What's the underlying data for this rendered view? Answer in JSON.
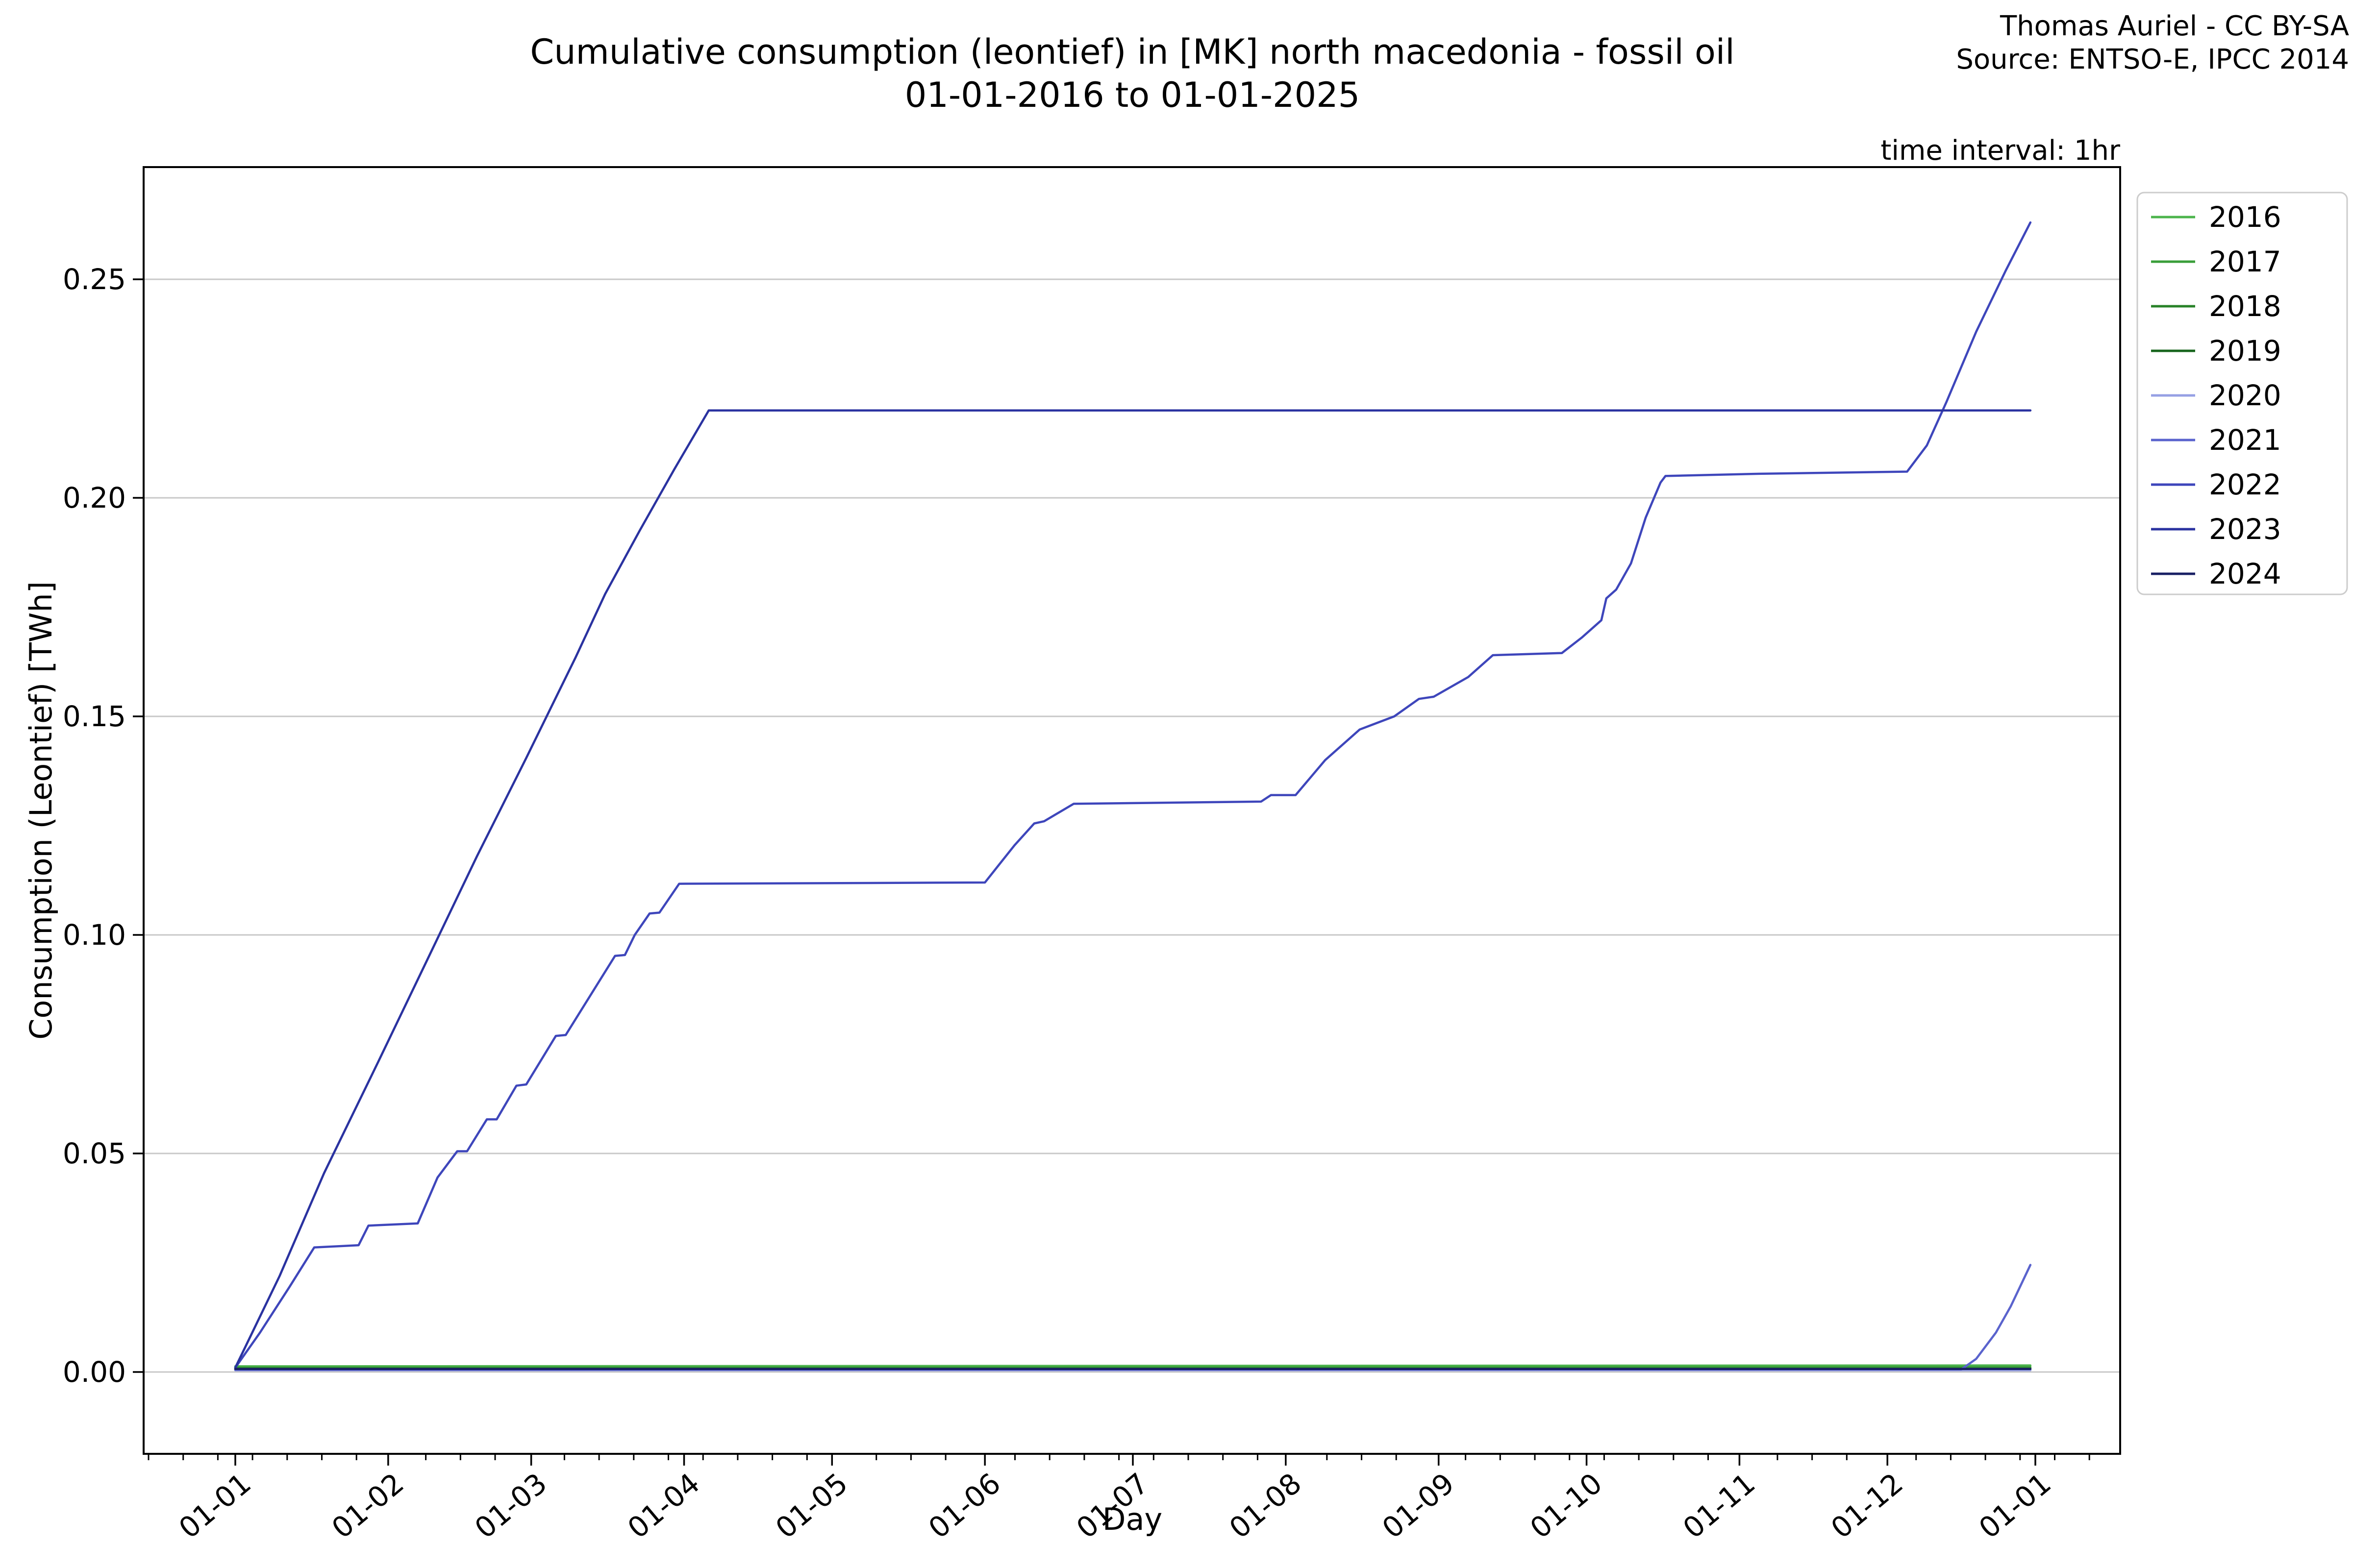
{
  "title": {
    "line1": "Cumulative consumption (leontief) in [MK] north macedonia - fossil oil",
    "line2": "01-01-2016 to 01-01-2025"
  },
  "credit": {
    "line1": "Thomas Auriel - CC BY-SA",
    "line2": "Source: ENTSO-E, IPCC 2014"
  },
  "time_interval_label": "time interval: 1hr",
  "axes": {
    "xlabel": "Day",
    "ylabel": "Consumption (Leontief) [TWh]"
  },
  "colors": {
    "grid": "#c8c8c8",
    "spine": "#000000",
    "background": "#ffffff",
    "legend_border": "#cccccc"
  },
  "chart_data": {
    "type": "line",
    "title": "Cumulative consumption (leontief) in [MK] north macedonia - fossil oil 01-01-2016 to 01-01-2025",
    "xlabel": "Day",
    "ylabel": "Consumption (Leontief) [TWh]",
    "x_unit": "day-of-year (labels are DD-MM)",
    "ylim": [
      -0.013,
      0.276
    ],
    "grid": "horizontal",
    "legend_position": "outside-upper-right",
    "yticks": [
      {
        "value": 0.0,
        "label": "0.00"
      },
      {
        "value": 0.05,
        "label": "0.05"
      },
      {
        "value": 0.1,
        "label": "0.10"
      },
      {
        "value": 0.15,
        "label": "0.15"
      },
      {
        "value": 0.2,
        "label": "0.20"
      },
      {
        "value": 0.25,
        "label": "0.25"
      }
    ],
    "xticks": [
      {
        "day": 1,
        "label": "01-01"
      },
      {
        "day": 32,
        "label": "01-02"
      },
      {
        "day": 61,
        "label": "01-03"
      },
      {
        "day": 92,
        "label": "01-04"
      },
      {
        "day": 122,
        "label": "01-05"
      },
      {
        "day": 153,
        "label": "01-06"
      },
      {
        "day": 183,
        "label": "01-07"
      },
      {
        "day": 214,
        "label": "01-08"
      },
      {
        "day": 245,
        "label": "01-09"
      },
      {
        "day": 275,
        "label": "01-10"
      },
      {
        "day": 306,
        "label": "01-11"
      },
      {
        "day": 336,
        "label": "01-12"
      },
      {
        "day": 366,
        "label": "01-01"
      }
    ],
    "series": [
      {
        "name": "2016",
        "color": "#4cb44c",
        "points": [
          [
            1,
            0.0013
          ],
          [
            365,
            0.0015
          ]
        ]
      },
      {
        "name": "2017",
        "color": "#3a9e3a",
        "points": [
          [
            1,
            0.001
          ],
          [
            365,
            0.0011
          ]
        ]
      },
      {
        "name": "2018",
        "color": "#288228",
        "points": [
          [
            1,
            0.0008
          ],
          [
            365,
            0.0008
          ]
        ]
      },
      {
        "name": "2019",
        "color": "#17641c",
        "points": [
          [
            1,
            0.0006
          ],
          [
            365,
            0.0006
          ]
        ]
      },
      {
        "name": "2020",
        "color": "#96a0e4",
        "points": [
          [
            1,
            0.0004
          ],
          [
            365,
            0.0004
          ]
        ]
      },
      {
        "name": "2021",
        "color": "#5a63cd",
        "points": [
          [
            1,
            0.0005
          ],
          [
            351,
            0.0006
          ],
          [
            354,
            0.003
          ],
          [
            358,
            0.009
          ],
          [
            361,
            0.015
          ],
          [
            365,
            0.0245
          ]
        ]
      },
      {
        "name": "2022",
        "color": "#3e46bb",
        "points": [
          [
            1,
            0.001
          ],
          [
            6,
            0.009
          ],
          [
            12,
            0.0195
          ],
          [
            17,
            0.0285
          ],
          [
            26,
            0.029
          ],
          [
            28,
            0.0335
          ],
          [
            38,
            0.034
          ],
          [
            42,
            0.0445
          ],
          [
            46,
            0.0505
          ],
          [
            48,
            0.0505
          ],
          [
            52,
            0.0578
          ],
          [
            54,
            0.0578
          ],
          [
            58,
            0.0655
          ],
          [
            60,
            0.0658
          ],
          [
            66,
            0.0769
          ],
          [
            68,
            0.0771
          ],
          [
            78,
            0.0952
          ],
          [
            80,
            0.0954
          ],
          [
            82,
            0.1
          ],
          [
            85,
            0.1049
          ],
          [
            87,
            0.1051
          ],
          [
            91,
            0.1117
          ],
          [
            153,
            0.112
          ],
          [
            159,
            0.1205
          ],
          [
            163,
            0.1255
          ],
          [
            165,
            0.126
          ],
          [
            171,
            0.13
          ],
          [
            209,
            0.1305
          ],
          [
            211,
            0.132
          ],
          [
            216,
            0.132
          ],
          [
            222,
            0.14
          ],
          [
            229,
            0.147
          ],
          [
            236,
            0.15
          ],
          [
            241,
            0.154
          ],
          [
            244,
            0.1545
          ],
          [
            251,
            0.159
          ],
          [
            256,
            0.164
          ],
          [
            270,
            0.1645
          ],
          [
            274,
            0.168
          ],
          [
            278,
            0.172
          ],
          [
            279,
            0.177
          ],
          [
            281,
            0.179
          ],
          [
            284,
            0.185
          ],
          [
            287,
            0.1955
          ],
          [
            290,
            0.2035
          ],
          [
            291,
            0.205
          ],
          [
            310,
            0.2055
          ],
          [
            340,
            0.206
          ],
          [
            344,
            0.212
          ],
          [
            348,
            0.222
          ],
          [
            354,
            0.238
          ],
          [
            360,
            0.252
          ],
          [
            365,
            0.263
          ]
        ]
      },
      {
        "name": "2023",
        "color": "#2a32a0",
        "points": [
          [
            1,
            0.001
          ],
          [
            10,
            0.022
          ],
          [
            19,
            0.0455
          ],
          [
            30,
            0.071
          ],
          [
            40,
            0.0945
          ],
          [
            50,
            0.118
          ],
          [
            60,
            0.1405
          ],
          [
            70,
            0.1635
          ],
          [
            76,
            0.178
          ],
          [
            83,
            0.1925
          ],
          [
            90,
            0.2065
          ],
          [
            97,
            0.22
          ],
          [
            365,
            0.22
          ]
        ]
      },
      {
        "name": "2024",
        "color": "#181f63",
        "points": [
          [
            1,
            0.0007
          ],
          [
            365,
            0.0007
          ]
        ]
      }
    ]
  }
}
